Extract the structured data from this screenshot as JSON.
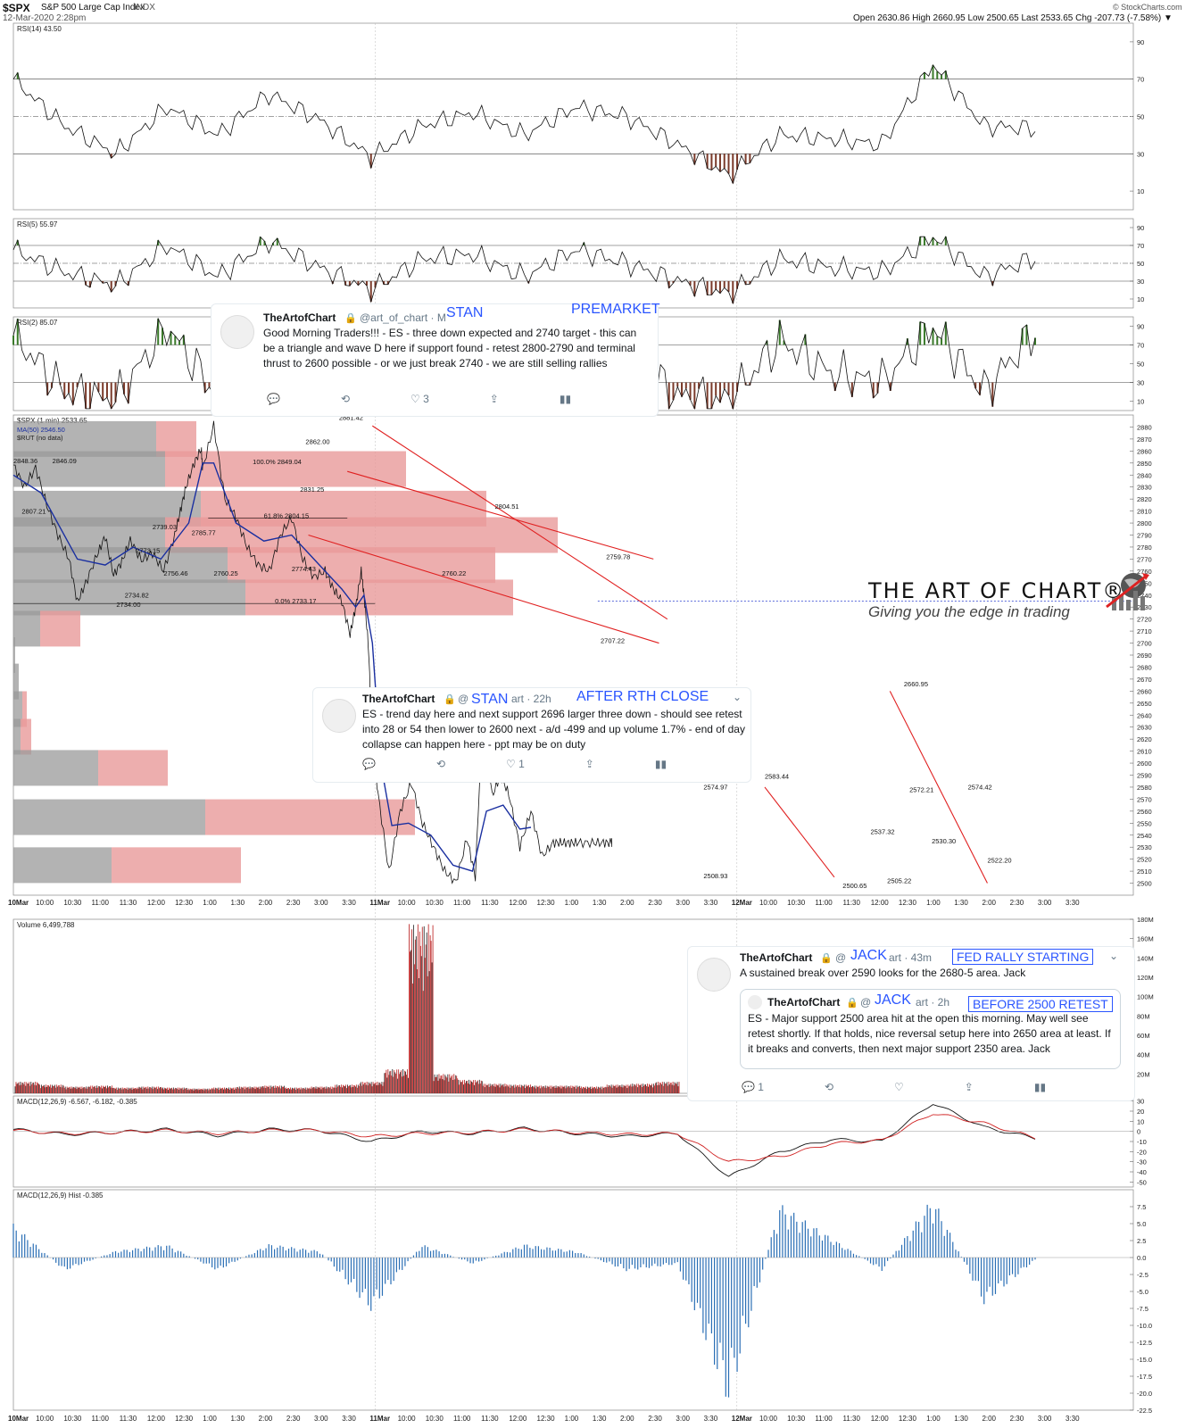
{
  "header": {
    "symbol": "$SPX",
    "name": "S&P 500 Large Cap Index",
    "exchange": "INDX",
    "date": "12-Mar-2020 2:28pm",
    "ohlc": "Open 2630.86  High 2660.95  Low 2500.65  Last 2533.65  Chg -207.73 (-7.58%) ▼",
    "credit": "© StockCharts.com"
  },
  "colors": {
    "price": "#111111",
    "ma": "#1a2fa0",
    "trend": "#e02020",
    "vol_bar": "#e89a9a",
    "vol_gray": "#9a9a9a",
    "overbought": "#3a7a2a",
    "oversold": "#7a3a2a",
    "hist": "#2a6fb5"
  },
  "chart_data": [
    {
      "type": "line",
      "title": "RSI(14) 43.50",
      "ylim": [
        0,
        100
      ],
      "yticks": [
        "90",
        "70",
        "50",
        "30",
        "10"
      ],
      "levels": [
        70,
        50,
        30
      ],
      "x": [
        "10Mar",
        "10:00",
        "11:00",
        "12:00",
        "1:00",
        "2:00",
        "3:00",
        "11Mar",
        "10:00",
        "11:00",
        "12:00",
        "1:00",
        "2:00",
        "3:00",
        "12Mar",
        "10:00",
        "11:00",
        "12:00",
        "1:00",
        "2:00",
        "2:30"
      ],
      "values": [
        70,
        45,
        30,
        55,
        40,
        62,
        48,
        28,
        45,
        52,
        40,
        55,
        50,
        35,
        18,
        40,
        38,
        35,
        78,
        45,
        43.5
      ]
    },
    {
      "type": "line",
      "title": "RSI(5) 55.97",
      "ylim": [
        0,
        100
      ],
      "yticks": [
        "90",
        "70",
        "50",
        "30",
        "10"
      ],
      "levels": [
        70,
        50,
        30
      ],
      "x": [
        "10Mar",
        "10:00",
        "11:00",
        "12:00",
        "1:00",
        "2:00",
        "3:00",
        "11Mar",
        "10:00",
        "11:00",
        "12:00",
        "1:00",
        "2:00",
        "3:00",
        "12Mar",
        "10:00",
        "11:00",
        "12:00",
        "1:00",
        "2:00",
        "2:30"
      ],
      "values": [
        65,
        40,
        25,
        70,
        35,
        75,
        45,
        20,
        55,
        60,
        35,
        65,
        50,
        30,
        15,
        55,
        45,
        40,
        80,
        35,
        55.97
      ]
    },
    {
      "type": "line",
      "title": "RSI(2) 85.07",
      "ylim": [
        0,
        100
      ],
      "yticks": [
        "90",
        "70",
        "50",
        "30",
        "10"
      ],
      "levels": [
        70,
        30
      ],
      "x": [
        "10Mar",
        "10:00",
        "11:00",
        "12:00",
        "1:00",
        "2:00",
        "3:00",
        "11Mar",
        "10:00",
        "11:00",
        "12:00",
        "1:00",
        "2:00",
        "3:00",
        "12Mar",
        "10:00",
        "11:00",
        "12:00",
        "1:00",
        "2:00",
        "2:30"
      ],
      "values": [
        80,
        20,
        10,
        90,
        15,
        85,
        30,
        5,
        70,
        80,
        20,
        85,
        60,
        15,
        10,
        75,
        40,
        30,
        90,
        20,
        85.07
      ]
    },
    {
      "type": "line",
      "title": "$SPX (1 min) 2533.65",
      "legend": [
        "MA(50) 2546.50",
        "$RUT (no data)"
      ],
      "ylim": [
        2490,
        2890
      ],
      "yticks": [
        "2880",
        "2870",
        "2860",
        "2850",
        "2840",
        "2830",
        "2820",
        "2810",
        "2800",
        "2790",
        "2780",
        "2770",
        "2760",
        "2750",
        "2740",
        "2730",
        "2720",
        "2710",
        "2700",
        "2690",
        "2680",
        "2670",
        "2660",
        "2650",
        "2640",
        "2630",
        "2620",
        "2610",
        "2600",
        "2590",
        "2580",
        "2570",
        "2560",
        "2550",
        "2540",
        "2530",
        "2520",
        "2510",
        "2500"
      ],
      "x": [
        "10Mar",
        "10:00",
        "10:30",
        "11:00",
        "11:30",
        "12:00",
        "12:30",
        "1:00",
        "1:30",
        "2:00",
        "2:30",
        "3:00",
        "3:30",
        "11Mar",
        "10:00",
        "10:30",
        "11:00",
        "11:30",
        "12:00",
        "12:30",
        "1:00",
        "1:30",
        "2:00",
        "2:30",
        "3:00",
        "3:30",
        "12Mar",
        "10:00",
        "10:30",
        "11:00",
        "11:30",
        "12:00",
        "12:30",
        "1:00",
        "1:30",
        "2:00",
        "2:30",
        "3:00",
        "3:30"
      ],
      "series": [
        {
          "name": "$SPX (1 min)",
          "x": [
            0,
            0.4,
            0.8,
            1.2,
            1.6,
            2.0,
            2.3,
            2.6,
            3.0,
            3.3,
            3.6,
            3.9,
            4.2,
            4.6,
            5.0,
            5.4,
            5.8,
            6.0,
            6.2,
            6.5,
            6.75,
            6.8,
            7.2,
            7.6,
            8.0,
            8.4,
            8.8,
            9.2,
            9.6,
            10.0,
            10.4,
            10.8,
            11.2,
            11.5,
            11.8,
            12.1,
            12.3,
            12.5,
            12.6,
            12.75,
            12.9,
            13.1,
            13.5,
            13.9,
            14.3,
            14.7,
            15.1,
            15.5,
            15.9,
            16.3,
            16.6,
            16.9,
            17.2,
            17.5,
            17.8,
            18.2,
            18.6,
            19.0,
            19.4,
            19.7,
            20.0,
            20.3,
            20.8,
            21.2,
            21.5
          ],
          "values": [
            2848.36,
            2830,
            2846.09,
            2815,
            2790,
            2770,
            2734.0,
            2750,
            2773.15,
            2789,
            2756.46,
            2768,
            2785.77,
            2769,
            2775,
            2760.25,
            2790,
            2810,
            2830,
            2850,
            2862.0,
            2845,
            2881.42,
            2820,
            2805,
            2780,
            2765,
            2760.22,
            2790,
            2804.51,
            2770,
            2755,
            2760,
            2745,
            2735,
            2707.22,
            2730,
            2759.78,
            2740,
            2700,
            2620,
            2574.97,
            2508.93,
            2560,
            2583.44,
            2550,
            2530,
            2510,
            2500.65,
            2537.32,
            2505.22,
            2660.95,
            2572.21,
            2590,
            2574.42,
            2530.3,
            2560,
            2522.2,
            2533.65,
            2533.65,
            2533.65,
            2533.65,
            2533.65,
            2533.65,
            2533.65
          ]
        },
        {
          "name": "MA(50) 2546.50",
          "x": [
            0,
            1.0,
            2.3,
            3.3,
            4.3,
            5.3,
            6.3,
            6.8,
            7.2,
            8.0,
            9.0,
            10.0,
            11.0,
            11.8,
            12.3,
            12.6,
            12.9,
            13.2,
            13.6,
            14.2,
            15.0,
            15.8,
            16.5,
            17.0,
            17.6,
            18.2,
            18.6
          ],
          "values": [
            2840,
            2825,
            2770,
            2765,
            2780,
            2770,
            2800,
            2850,
            2850,
            2800,
            2785,
            2790,
            2765,
            2745,
            2730,
            2740,
            2700,
            2600,
            2548,
            2550,
            2540,
            2515,
            2510,
            2560,
            2565,
            2545,
            2546.5
          ]
        }
      ],
      "annotations": [
        "2848.36",
        "2846.09",
        "2807.21",
        "2773.15",
        "2734.82",
        "2734.00",
        "2739.03",
        "2756.46",
        "2785.77",
        "2760.25",
        "100.0% 2849.04",
        "61.8% 2804.15",
        "2831.25",
        "2862.00",
        "2881.42",
        "2774.43",
        "0.0% 2733.17",
        "2804.51",
        "2760.22",
        "2759.78",
        "2707.22",
        "2574.97",
        "2508.93",
        "2583.44",
        "2537.32",
        "2500.65",
        "2505.22",
        "2660.95",
        "2572.21",
        "2574.42",
        "2530.30",
        "2522.20"
      ]
    },
    {
      "type": "bar",
      "title": "Volume 6,499,788",
      "ylim": [
        0,
        180
      ],
      "yticks": [
        "180M",
        "160M",
        "140M",
        "120M",
        "100M",
        "80M",
        "60M",
        "40M",
        "20M"
      ],
      "values_M": [
        12,
        9,
        7,
        8,
        6,
        7,
        6,
        5,
        6,
        7,
        8,
        6,
        7,
        9,
        12,
        25,
        175,
        20,
        14,
        10,
        9,
        8,
        8,
        7,
        9,
        10,
        12
      ]
    },
    {
      "type": "line",
      "title": "MACD(12,26,9) -6.567, -6.182, -0.385",
      "ylim": [
        -55,
        35
      ],
      "yticks": [
        "30",
        "20",
        "10",
        "0",
        "-10",
        "-20",
        "-30",
        "-40",
        "-50"
      ],
      "series": [
        {
          "name": "MACD",
          "values": [
            2,
            -3,
            -1,
            2,
            -4,
            2,
            1,
            -10,
            0,
            -2,
            3,
            -2,
            -5,
            -2,
            -45,
            -20,
            -8,
            -10,
            28,
            4,
            -6.567
          ]
        },
        {
          "name": "Signal",
          "values": [
            1,
            -2,
            -1,
            1,
            -2,
            1,
            1,
            -5,
            -2,
            -1,
            2,
            -1,
            -3,
            -2,
            -30,
            -25,
            -12,
            -9,
            18,
            8,
            -6.182
          ]
        }
      ]
    },
    {
      "type": "bar",
      "title": "MACD(12,26,9) Hist -0.385",
      "ylim": [
        -22.5,
        10
      ],
      "yticks": [
        "7.5",
        "5.0",
        "2.5",
        "0.0",
        "-2.5",
        "-5.0",
        "-7.5",
        "-10.0",
        "-12.5",
        "-15.0",
        "-17.5",
        "-20.0",
        "-22.5"
      ],
      "values": [
        5,
        -2,
        1,
        2,
        -2,
        2,
        1,
        -8,
        2,
        -1,
        2,
        1,
        -2,
        -1,
        -22,
        8,
        3,
        -2,
        9,
        -7,
        -0.385
      ]
    }
  ],
  "xaxis_labels": [
    "10Mar",
    "10:00",
    "10:30",
    "11:00",
    "11:30",
    "12:00",
    "12:30",
    "1:00",
    "1:30",
    "2:00",
    "2:30",
    "3:00",
    "3:30",
    "11Mar",
    "10:00",
    "10:30",
    "11:00",
    "11:30",
    "12:00",
    "12:30",
    "1:00",
    "1:30",
    "2:00",
    "2:30",
    "3:00",
    "3:30",
    "12Mar",
    "10:00",
    "10:30",
    "11:00",
    "11:30",
    "12:00",
    "12:30",
    "1:00",
    "1:30",
    "2:00",
    "2:30",
    "3:00",
    "3:30"
  ],
  "tweets": {
    "t1": {
      "name": "TheArtofChart",
      "handle": "@art_of_chart · M",
      "stamp": "STAN",
      "label": "PREMARKET",
      "text": "Good Morning Traders!!! - ES - three down expected and 2740 target - this can be a triangle and wave D here if support found -  retest 2800-2790 and terminal thrust to 2600 possible - or we just break 2740 - we are still selling rallies",
      "likes": "3"
    },
    "t2": {
      "name": "TheArtofChart",
      "handle": "@",
      "handle2": "art · 22h",
      "stamp": "STAN",
      "label": "AFTER RTH CLOSE",
      "text": "ES - trend day here and next support 2696   larger three down - should see retest into 28 or 54 then lower to 2600 next - a/d -499 and up volume 1.7% - end of day collapse can happen here - ppt may be on duty",
      "likes": "1"
    },
    "t3": {
      "name": "TheArtofChart",
      "handle": "@",
      "handle2": "art · 43m",
      "stamp": "JACK",
      "label": "FED RALLY STARTING",
      "text": "A sustained break over 2590 looks for the 2680-5 area. Jack",
      "likes": "1",
      "quote": {
        "name": "TheArtofChart",
        "handle": "@",
        "handle2": "art · 2h",
        "stamp": "JACK",
        "label": "BEFORE 2500 RETEST",
        "text": "ES - Major support 2500 area hit at the open this morning. May well see retest shortly. If that holds, nice reversal setup here into 2650 area at least. If it breaks and converts, then next major support 2350 area. Jack"
      }
    }
  },
  "logo": {
    "title": "THE ART OF CHART®",
    "subtitle": "Giving you the edge in trading"
  }
}
